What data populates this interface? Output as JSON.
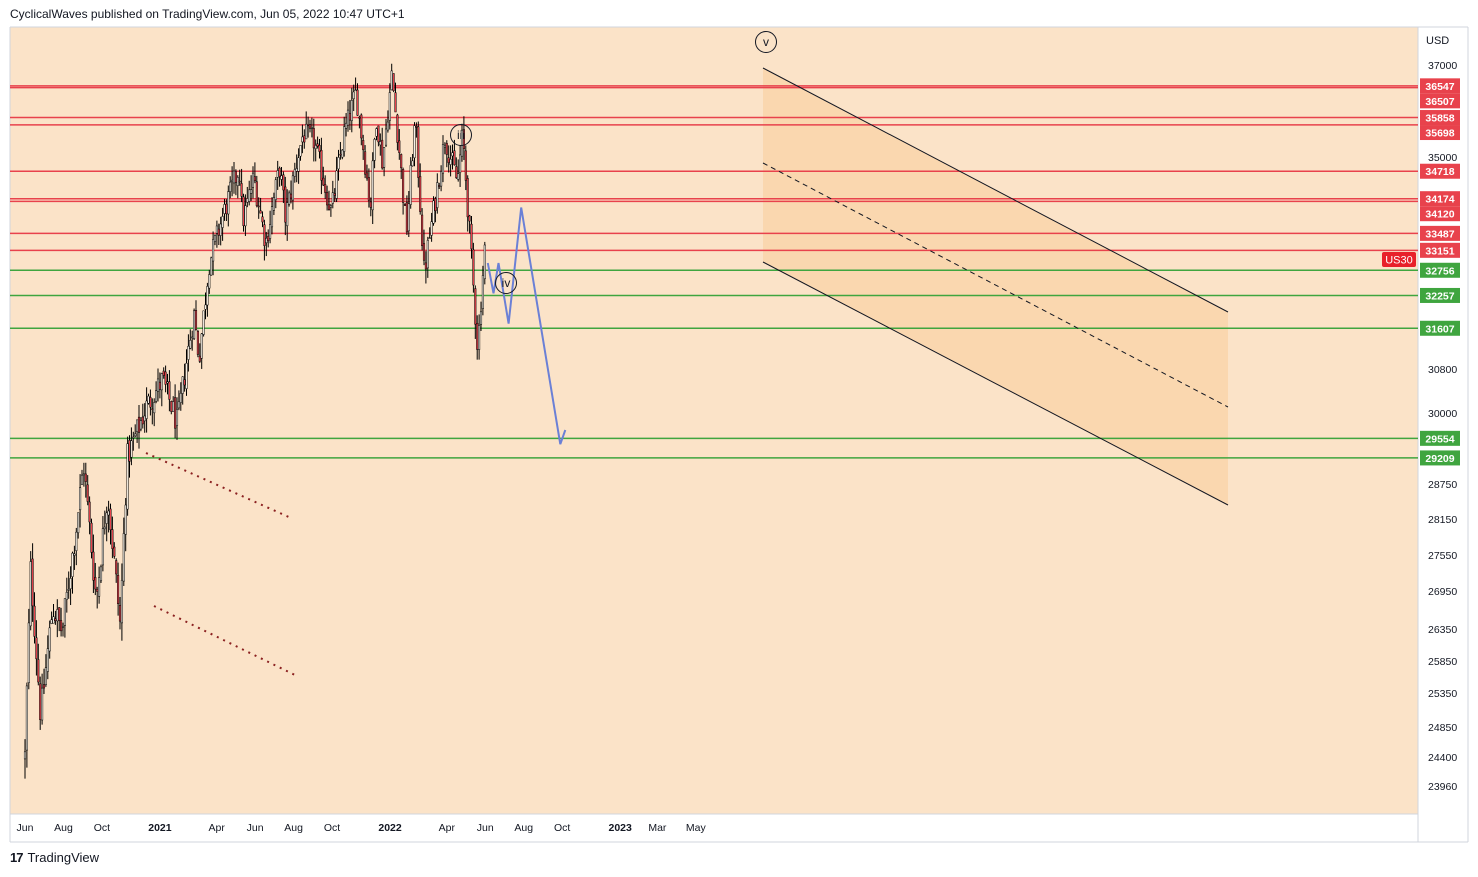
{
  "header": {
    "text": "CyclicalWaves published on TradingView.com, Jun 05, 2022 10:47 UTC+1"
  },
  "footer": {
    "logo": "17",
    "brand": "TradingView"
  },
  "colors": {
    "background": "#fbe3c8",
    "channel_fill": "#f9d1a4",
    "resistance": "#e8424c",
    "support": "#3fa53f",
    "projection": "#6b80d6",
    "candle": "#000000"
  },
  "chart_data": {
    "type": "candlestick",
    "title": "",
    "symbol_badge": "US30",
    "currency": "USD",
    "x_ticks": [
      {
        "label": "Jun",
        "date": "2020-06"
      },
      {
        "label": "Aug",
        "date": "2020-08"
      },
      {
        "label": "Oct",
        "date": "2020-10"
      },
      {
        "label": "2021",
        "date": "2021-01"
      },
      {
        "label": "Apr",
        "date": "2021-04"
      },
      {
        "label": "Jun",
        "date": "2021-06"
      },
      {
        "label": "Aug",
        "date": "2021-08"
      },
      {
        "label": "Oct",
        "date": "2021-10"
      },
      {
        "label": "2022",
        "date": "2022-01"
      },
      {
        "label": "Apr",
        "date": "2022-04"
      },
      {
        "label": "Jun",
        "date": "2022-06"
      },
      {
        "label": "Aug",
        "date": "2022-08"
      },
      {
        "label": "Oct",
        "date": "2022-10"
      },
      {
        "label": "2023",
        "date": "2023-01"
      },
      {
        "label": "Mar",
        "date": "2023-03"
      },
      {
        "label": "May",
        "date": "2023-05"
      }
    ],
    "y_ticks": [
      37000,
      35000,
      30800,
      30000,
      28750,
      28150,
      27550,
      26950,
      26350,
      25850,
      25350,
      24850,
      24400,
      23960
    ],
    "resistance_levels": [
      36547,
      36507,
      35858,
      35698,
      34718,
      34174,
      34120,
      33487,
      33151
    ],
    "support_levels": [
      32756,
      32257,
      31607,
      29554,
      29209
    ],
    "wave_labels": [
      "iii",
      "iv",
      "v"
    ],
    "price_path": [
      [
        "2020-06-01",
        24400
      ],
      [
        "2020-06-10",
        27300
      ],
      [
        "2020-06-26",
        25000
      ],
      [
        "2020-07-15",
        26700
      ],
      [
        "2020-07-30",
        26300
      ],
      [
        "2020-08-20",
        27900
      ],
      [
        "2020-09-02",
        29100
      ],
      [
        "2020-09-22",
        26800
      ],
      [
        "2020-10-10",
        28600
      ],
      [
        "2020-10-30",
        26400
      ],
      [
        "2020-11-10",
        29200
      ],
      [
        "2020-12-10",
        30100
      ],
      [
        "2021-01-05",
        30600
      ],
      [
        "2021-01-29",
        29800
      ],
      [
        "2021-02-24",
        31900
      ],
      [
        "2021-03-04",
        31000
      ],
      [
        "2021-03-20",
        32900
      ],
      [
        "2021-04-15",
        34000
      ],
      [
        "2021-05-07",
        34800
      ],
      [
        "2021-05-12",
        33700
      ],
      [
        "2021-05-30",
        34600
      ],
      [
        "2021-06-18",
        33300
      ],
      [
        "2021-07-10",
        34800
      ],
      [
        "2021-07-19",
        33800
      ],
      [
        "2021-08-16",
        35500
      ],
      [
        "2021-09-01",
        35400
      ],
      [
        "2021-09-30",
        33900
      ],
      [
        "2021-10-20",
        35500
      ],
      [
        "2021-11-08",
        36400
      ],
      [
        "2021-12-01",
        34000
      ],
      [
        "2021-12-10",
        35900
      ],
      [
        "2021-12-20",
        34900
      ],
      [
        "2022-01-04",
        36800
      ],
      [
        "2022-01-27",
        33500
      ],
      [
        "2022-02-10",
        35800
      ],
      [
        "2022-02-24",
        32700
      ],
      [
        "2022-03-29",
        35400
      ],
      [
        "2022-04-18",
        34500
      ],
      [
        "2022-04-26",
        35500
      ],
      [
        "2022-05-20",
        31200
      ],
      [
        "2022-05-31",
        33200
      ],
      [
        "2022-06-03",
        32900
      ]
    ],
    "projection_path": [
      [
        "2022-06-05",
        32900
      ],
      [
        "2022-06-14",
        32300
      ],
      [
        "2022-06-22",
        32900
      ],
      [
        "2022-07-08",
        31700
      ],
      [
        "2022-07-28",
        34000
      ],
      [
        "2022-09-28",
        29450
      ],
      [
        "2022-10-06",
        29700
      ]
    ]
  }
}
